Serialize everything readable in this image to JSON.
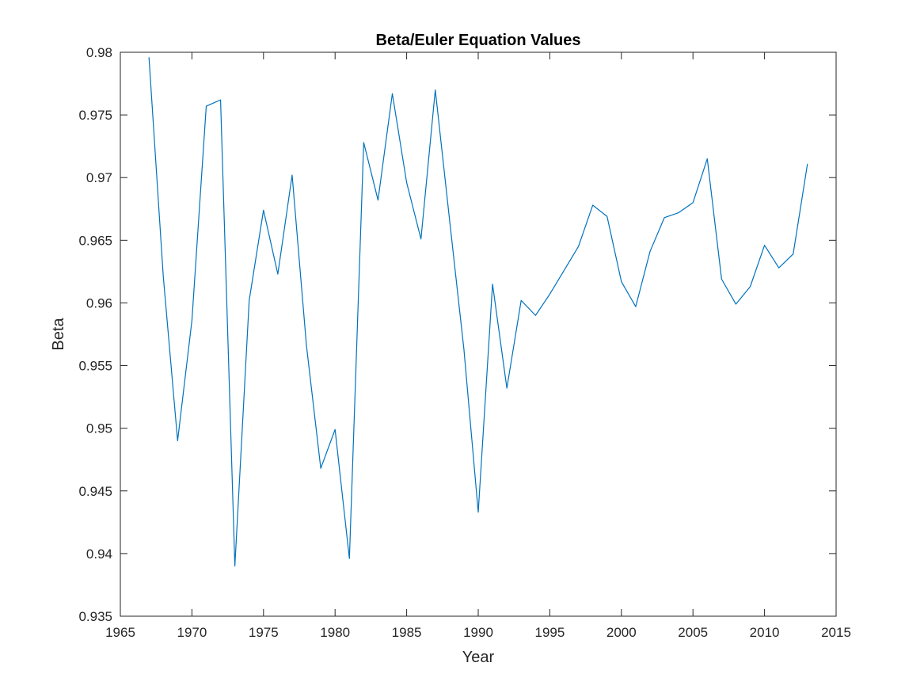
{
  "chart_data": {
    "type": "line",
    "title": "Beta/Euler Equation Values",
    "xlabel": "Year",
    "ylabel": "Beta",
    "xlim": [
      1965,
      2015
    ],
    "ylim": [
      0.935,
      0.98
    ],
    "grid": false,
    "legend": "none",
    "x_ticks": [
      "1965",
      "1970",
      "1975",
      "1980",
      "1985",
      "1990",
      "1995",
      "2000",
      "2005",
      "2010",
      "2015"
    ],
    "y_ticks": [
      "0.935",
      "0.94",
      "0.945",
      "0.95",
      "0.955",
      "0.96",
      "0.965",
      "0.97",
      "0.975",
      "0.98"
    ],
    "line_color": "#0072BD",
    "series": [
      {
        "x": [
          1967,
          1968,
          1969,
          1970,
          1971,
          1972,
          1973,
          1974,
          1975,
          1976,
          1977,
          1978,
          1979,
          1980,
          1981,
          1982,
          1983,
          1984,
          1985,
          1986,
          1987,
          1988,
          1989,
          1990,
          1991,
          1992,
          1993,
          1994,
          1995,
          1996,
          1997,
          1998,
          1999,
          2000,
          2001,
          2002,
          2003,
          2004,
          2005,
          2006,
          2007,
          2008,
          2009,
          2010,
          2011,
          2012,
          2013
        ],
        "y": [
          0.9796,
          0.9621,
          0.949,
          0.9586,
          0.9757,
          0.9762,
          0.939,
          0.9602,
          0.9674,
          0.9623,
          0.9702,
          0.9566,
          0.9468,
          0.9499,
          0.9396,
          0.9728,
          0.9682,
          0.9767,
          0.9696,
          0.9651,
          0.977,
          0.9666,
          0.9563,
          0.9433,
          0.9615,
          0.9532,
          0.9602,
          0.959,
          0.9607,
          0.9626,
          0.9645,
          0.9678,
          0.9669,
          0.9617,
          0.9597,
          0.9641,
          0.9668,
          0.9672,
          0.968,
          0.9715,
          0.9619,
          0.9599,
          0.9613,
          0.9646,
          0.9628,
          0.9639,
          0.9711
        ]
      }
    ]
  }
}
